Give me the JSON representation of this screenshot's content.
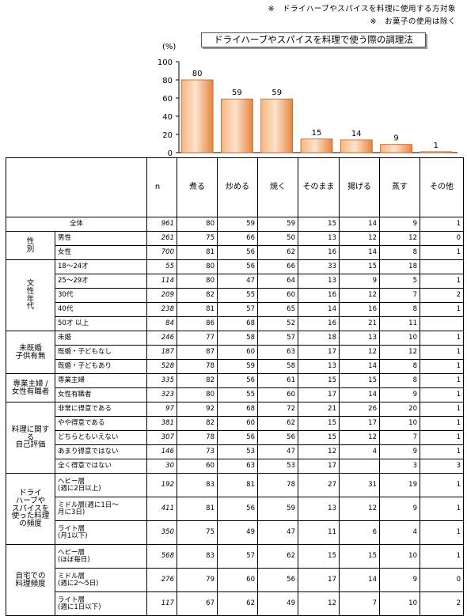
{
  "notes": [
    "※　ドライハーブやスパイスを料理に使用する方対象",
    "※　お菓子の使用は除く"
  ],
  "chart_data": {
    "type": "bar",
    "title": "ドライハーブやスパイスを料理で使う際の調理法",
    "ylabel": "(%)",
    "ylim": [
      0,
      100
    ],
    "yticks": [
      0,
      20,
      40,
      60,
      80,
      100
    ],
    "categories": [
      "煮る",
      "炒める",
      "焼く",
      "そのまま",
      "揚げる",
      "蒸す",
      "その他"
    ],
    "values": [
      80,
      59,
      59,
      15,
      14,
      9,
      1
    ],
    "color": "#f4a460"
  },
  "table": {
    "header": {
      "n": "n",
      "columns": [
        "煮る",
        "炒める",
        "焼く",
        "そのまま",
        "揚げる",
        "蒸す",
        "その他"
      ]
    },
    "groups": [
      {
        "label": "",
        "rows": [
          {
            "label": "全体",
            "n": "961",
            "values": [
              "80",
              "59",
              "59",
              "15",
              "14",
              "9",
              "1"
            ]
          }
        ]
      },
      {
        "label": "性\n別",
        "rows": [
          {
            "label": "男性",
            "n": "261",
            "values": [
              "75",
              "66",
              "50",
              "13",
              "12",
              "12",
              "0"
            ]
          },
          {
            "label": "女性",
            "n": "700",
            "values": [
              "81",
              "56",
              "62",
              "16",
              "14",
              "8",
              "1"
            ]
          }
        ]
      },
      {
        "label": "文\n性\n年\n代",
        "rows": [
          {
            "label": "18～24才",
            "n": "55",
            "values": [
              "80",
              "56",
              "66",
              "33",
              "15",
              "18",
              ""
            ]
          },
          {
            "label": "25～29才",
            "n": "114",
            "values": [
              "80",
              "47",
              "64",
              "13",
              "9",
              "5",
              "1"
            ]
          },
          {
            "label": "30代",
            "n": "209",
            "values": [
              "82",
              "55",
              "60",
              "16",
              "12",
              "7",
              "2"
            ]
          },
          {
            "label": "40代",
            "n": "238",
            "values": [
              "81",
              "57",
              "65",
              "14",
              "16",
              "8",
              "1"
            ]
          },
          {
            "label": "50才 以上",
            "n": "84",
            "values": [
              "86",
              "68",
              "52",
              "16",
              "21",
              "11",
              ""
            ]
          }
        ]
      },
      {
        "label": "未既婚\n子供有無",
        "rows": [
          {
            "label": "未婚",
            "n": "246",
            "values": [
              "77",
              "58",
              "57",
              "18",
              "13",
              "10",
              "1"
            ]
          },
          {
            "label": "既婚・子どもなし",
            "n": "187",
            "values": [
              "87",
              "60",
              "63",
              "17",
              "12",
              "12",
              "1"
            ]
          },
          {
            "label": "既婚・子どもあり",
            "n": "528",
            "values": [
              "78",
              "59",
              "58",
              "13",
              "14",
              "8",
              "1"
            ]
          }
        ]
      },
      {
        "label": "専業主婦 /\n女性有職者",
        "rows": [
          {
            "label": "専業主婦",
            "n": "335",
            "values": [
              "82",
              "56",
              "61",
              "15",
              "15",
              "8",
              "1"
            ]
          },
          {
            "label": "女性有職者",
            "n": "323",
            "values": [
              "80",
              "55",
              "60",
              "17",
              "14",
              "9",
              "1"
            ]
          }
        ]
      },
      {
        "label": "料理に関する\n自己評価",
        "rows": [
          {
            "label": "非常に得意である",
            "n": "97",
            "values": [
              "92",
              "68",
              "72",
              "21",
              "26",
              "20",
              "1"
            ]
          },
          {
            "label": "やや得意である",
            "n": "381",
            "values": [
              "82",
              "60",
              "62",
              "15",
              "17",
              "10",
              "1"
            ]
          },
          {
            "label": "どちらともいえない",
            "n": "307",
            "values": [
              "78",
              "56",
              "56",
              "15",
              "12",
              "7",
              "1"
            ]
          },
          {
            "label": "あまり得意ではない",
            "n": "146",
            "values": [
              "73",
              "53",
              "47",
              "12",
              "4",
              "9",
              "1"
            ]
          },
          {
            "label": "全く得意ではない",
            "n": "30",
            "values": [
              "60",
              "63",
              "53",
              "17",
              "",
              "3",
              "3"
            ]
          }
        ]
      },
      {
        "label": "ドライ\nハーブや\nスパイスを\n使った料理\nの頻度",
        "rows": [
          {
            "label": "ヘビー層\n(週に2日以上)",
            "n": "192",
            "values": [
              "83",
              "81",
              "78",
              "27",
              "31",
              "19",
              "1"
            ]
          },
          {
            "label": "ミドル層(週に1日～\n月に3日)",
            "n": "411",
            "values": [
              "81",
              "56",
              "59",
              "13",
              "12",
              "9",
              "1"
            ]
          },
          {
            "label": "ライト層\n(月1以下)",
            "n": "350",
            "values": [
              "75",
              "49",
              "47",
              "11",
              "6",
              "4",
              "1"
            ]
          }
        ]
      },
      {
        "label": "自宅での\n料理頻度",
        "rows": [
          {
            "label": "ヘビー層\n(ほぼ毎日)",
            "n": "568",
            "values": [
              "83",
              "57",
              "62",
              "15",
              "15",
              "10",
              "1"
            ]
          },
          {
            "label": "ミドル層\n(週に2～5日)",
            "n": "276",
            "values": [
              "79",
              "60",
              "56",
              "17",
              "14",
              "9",
              "0"
            ]
          },
          {
            "label": "ライト層\n(週に1日以下)",
            "n": "117",
            "values": [
              "67",
              "62",
              "49",
              "12",
              "7",
              "10",
              "2"
            ]
          }
        ]
      }
    ]
  }
}
